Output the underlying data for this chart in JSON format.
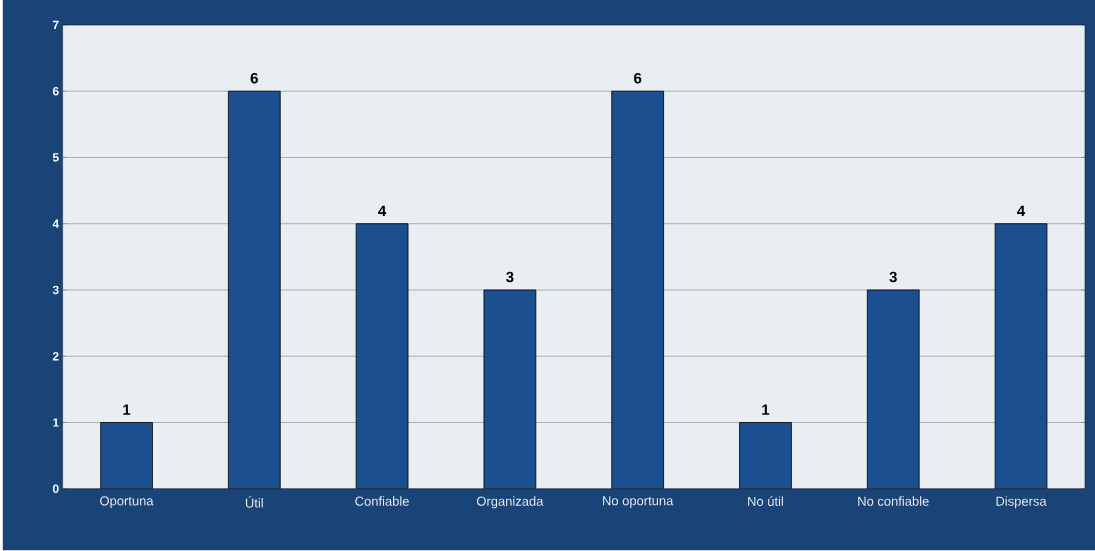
{
  "chart_data": {
    "type": "bar",
    "categories": [
      "Oportuna",
      "Útil",
      "Confiable",
      "Organizada",
      "No oportuna",
      "No útil",
      "No confiable",
      "Dispersa"
    ],
    "values": [
      1,
      6,
      4,
      3,
      6,
      1,
      3,
      4
    ],
    "color": "#1c4f8f",
    "ylim": [
      0,
      7
    ],
    "yticks": [
      0,
      1,
      2,
      3,
      4,
      5,
      6,
      7
    ],
    "grid": "y",
    "data_labels": true
  }
}
